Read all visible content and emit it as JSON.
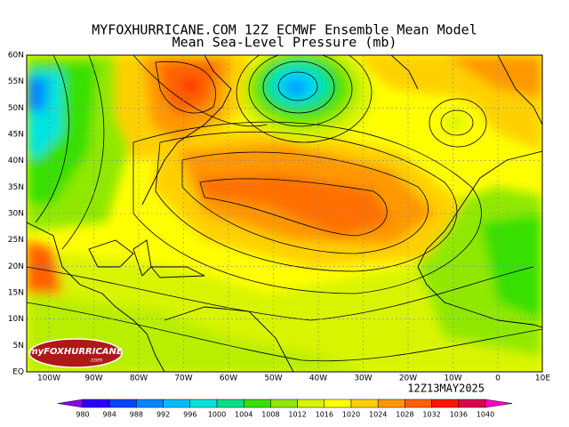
{
  "header": {
    "title": "MYFOXHURRICANE.COM 12Z ECMWF Ensemble Mean Model",
    "subtitle": "Mean Sea-Level Pressure (mb)"
  },
  "map": {
    "lat_labels": [
      "60N",
      "55N",
      "50N",
      "45N",
      "40N",
      "35N",
      "30N",
      "25N",
      "20N",
      "15N",
      "10N",
      "5N",
      "EQ"
    ],
    "lon_labels": [
      "100W",
      "90W",
      "80W",
      "70W",
      "60W",
      "50W",
      "40W",
      "30W",
      "20W",
      "10W",
      "0",
      "10E"
    ],
    "timestamp": "12Z13MAY2025",
    "logo": {
      "brand": "myFOXHURRICANE",
      "sub": ".com"
    }
  },
  "colorbar": {
    "levels": [
      980,
      984,
      988,
      992,
      996,
      1000,
      1004,
      1008,
      1012,
      1016,
      1020,
      1024,
      1028,
      1032,
      1036,
      1040
    ],
    "colors": [
      "#8a00f0",
      "#2a00ff",
      "#0048ff",
      "#0088ff",
      "#00bcff",
      "#00e4e0",
      "#00e088",
      "#38e000",
      "#90e800",
      "#d8f400",
      "#ffff00",
      "#ffd000",
      "#ff9800",
      "#ff6000",
      "#ff1800",
      "#e0004a",
      "#ff00c8"
    ]
  }
}
